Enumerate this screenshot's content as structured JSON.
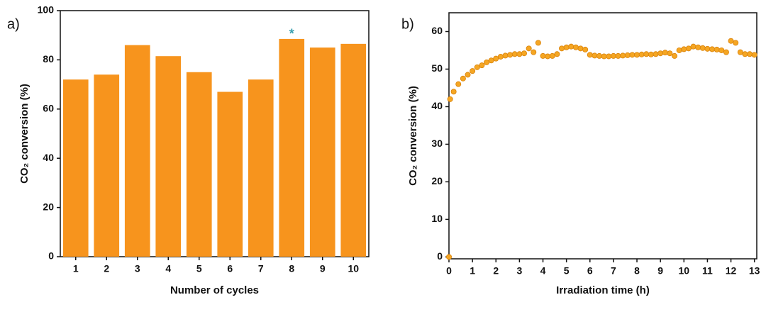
{
  "chart_data": [
    {
      "type": "bar",
      "panel_label": "a)",
      "xlabel": "Number of cycles",
      "ylabel": "CO₂ conversion (%)",
      "categories": [
        "1",
        "2",
        "3",
        "4",
        "5",
        "6",
        "7",
        "8",
        "9",
        "10"
      ],
      "values": [
        72,
        74,
        86,
        81.5,
        75,
        67,
        72,
        88.5,
        85,
        86.5
      ],
      "color": "#f7941d",
      "annotation": "*",
      "annotation_color": "#3aa0b0",
      "ylim": [
        0,
        100
      ],
      "yticks": [
        0,
        20,
        40,
        60,
        80,
        100
      ]
    },
    {
      "type": "scatter",
      "panel_label": "b)",
      "xlabel": "Irradiation time (h)",
      "ylabel": "CO₂ conversion (%)",
      "color": "#f5a623",
      "x": [
        0,
        0.05,
        0.2,
        0.4,
        0.6,
        0.8,
        1.0,
        1.2,
        1.4,
        1.6,
        1.8,
        2.0,
        2.2,
        2.4,
        2.6,
        2.8,
        3.0,
        3.2,
        3.4,
        3.6,
        3.8,
        4.0,
        4.2,
        4.4,
        4.6,
        4.8,
        5.0,
        5.2,
        5.4,
        5.6,
        5.8,
        6.0,
        6.2,
        6.4,
        6.6,
        6.8,
        7.0,
        7.2,
        7.4,
        7.6,
        7.8,
        8.0,
        8.2,
        8.4,
        8.6,
        8.8,
        9.0,
        9.2,
        9.4,
        9.6,
        9.8,
        10.0,
        10.2,
        10.4,
        10.6,
        10.8,
        11.0,
        11.2,
        11.4,
        11.6,
        11.8,
        12.0,
        12.2,
        12.4,
        12.6,
        12.8,
        13.0
      ],
      "values": [
        0,
        42,
        44,
        46,
        47.5,
        48.5,
        49.5,
        50.5,
        51,
        51.8,
        52.3,
        52.8,
        53.3,
        53.6,
        53.8,
        54,
        54,
        54.2,
        55.5,
        54.5,
        57,
        53.5,
        53.4,
        53.5,
        54,
        55.5,
        55.8,
        56,
        55.8,
        55.5,
        55.2,
        53.8,
        53.6,
        53.5,
        53.4,
        53.4,
        53.5,
        53.5,
        53.6,
        53.7,
        53.8,
        53.8,
        53.9,
        54,
        53.9,
        54,
        54.2,
        54.4,
        54.2,
        53.5,
        55,
        55.3,
        55.5,
        56,
        55.8,
        55.6,
        55.4,
        55.3,
        55.2,
        55,
        54.5,
        57.5,
        57,
        54.5,
        54,
        54,
        53.8
      ],
      "xlim": [
        0,
        13.1
      ],
      "xticks": [
        0,
        1,
        2,
        3,
        4,
        5,
        6,
        7,
        8,
        9,
        10,
        11,
        12,
        13
      ],
      "ylim": [
        -0.5,
        65
      ],
      "yticks": [
        0,
        10,
        20,
        30,
        40,
        50,
        60
      ]
    }
  ]
}
